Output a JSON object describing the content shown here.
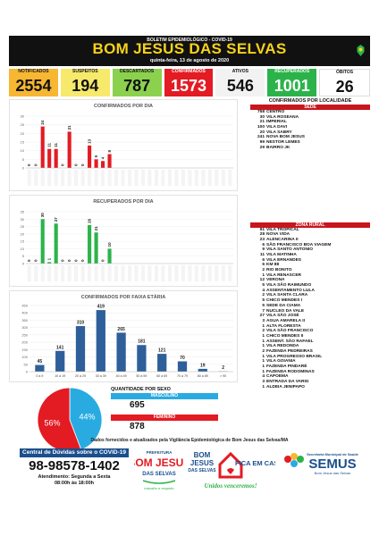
{
  "header": {
    "pretitle": "BOLETIM EPIDEMIOLÓGICO - COVID-19",
    "title": "BOM JESUS DAS SELVAS",
    "date": "quinta-feira, 13 de agosto de 2020"
  },
  "stats": [
    {
      "label": "NOTIFICADOS",
      "value": "2554",
      "color": "#f7b733",
      "text_color": "#111111"
    },
    {
      "label": "SUSPEITOS",
      "value": "194",
      "color": "#f7e96b",
      "text_color": "#111111"
    },
    {
      "label": "DESCARTADOS",
      "value": "787",
      "color": "#8bd14e",
      "text_color": "#111111"
    },
    {
      "label": "CONFIRMADOS",
      "value": "1573",
      "color": "#e31b23",
      "text_color": "#ffffff"
    },
    {
      "label": "ATIVOS",
      "value": "546",
      "color": "#f2f2f2",
      "text_color": "#111111"
    },
    {
      "label": "RECUPERADOS",
      "value": "1001",
      "color": "#2bb34a",
      "text_color": "#ffffff"
    },
    {
      "label": "ÓBITOS",
      "value": "26",
      "color": "#ffffff",
      "text_color": "#111111"
    }
  ],
  "charts": {
    "confirmados_dia": {
      "title": "CONFIRMADOS POR DIA",
      "type": "bar",
      "color": "#e31b23",
      "y_ticks": [
        "0",
        "5",
        "10",
        "15",
        "20",
        "25",
        "30"
      ],
      "ylim": [
        0,
        30
      ],
      "values": [
        0,
        0,
        24,
        11,
        11,
        0,
        21,
        0,
        0,
        13,
        5,
        4,
        8,
        0,
        0,
        0,
        0,
        0,
        0,
        0,
        0,
        0,
        0,
        0,
        0,
        0,
        0,
        0,
        0,
        0,
        0
      ],
      "labels": [
        "0",
        "0",
        "24",
        "11",
        "11",
        "0",
        "21",
        "0",
        "0",
        "13",
        "5",
        "4",
        "8"
      ]
    },
    "recuperados_dia": {
      "title": "RECUPERADOS POR DIA",
      "type": "bar",
      "color": "#2bb34a",
      "y_ticks": [
        "0",
        "5",
        "10",
        "15",
        "20",
        "25",
        "30",
        "35"
      ],
      "ylim": [
        0,
        35
      ],
      "values": [
        0,
        0,
        30,
        1,
        27,
        0,
        0,
        0,
        0,
        26,
        21,
        0,
        10,
        0,
        0,
        0,
        0,
        0,
        0,
        0,
        0,
        0,
        0,
        0,
        0,
        0,
        0,
        0,
        0,
        0,
        0
      ],
      "labels": [
        "0",
        "0",
        "30",
        "1",
        "27",
        "0",
        "0",
        "0",
        "0",
        "26",
        "21",
        "0",
        "10"
      ]
    },
    "faixa_etaria": {
      "title": "CONFIRMADOS POR FAIXA ETÁRIA",
      "type": "bar",
      "color": "#2e5f9a",
      "y_ticks": [
        "0",
        "50",
        "100",
        "150",
        "200",
        "250",
        "300",
        "350",
        "400",
        "450"
      ],
      "ylim": [
        0,
        450
      ],
      "categories": [
        "0 a 9",
        "10 a 19",
        "20 a 29",
        "30 a 39",
        "40 a 49",
        "50 a 59",
        "60 a 69",
        "70 a 79",
        "80 a 89",
        "> 90"
      ],
      "values": [
        45,
        141,
        310,
        419,
        265,
        181,
        121,
        70,
        19,
        2
      ]
    }
  },
  "localidade": {
    "title": "CONFIRMADOS POR LOCALIDADE",
    "sede_label": "SEDE",
    "sede": [
      {
        "n": "758",
        "name": "CENTRO"
      },
      {
        "n": "30",
        "name": "VILA ROSEANA"
      },
      {
        "n": "21",
        "name": "IMPERIAL"
      },
      {
        "n": "100",
        "name": "VILA DAVI"
      },
      {
        "n": "20",
        "name": "VILA SABRY"
      },
      {
        "n": "241",
        "name": "NOVA BOM JESUS"
      },
      {
        "n": "99",
        "name": "NESTOR LEMES"
      },
      {
        "n": "29",
        "name": "BAIRRO JK"
      }
    ],
    "rural_label": "ZONA RURAL",
    "rural": [
      {
        "n": "91",
        "name": "VILA TROPICAL"
      },
      {
        "n": "28",
        "name": "NOVA VIDA"
      },
      {
        "n": "23",
        "name": "ALENCARINA II"
      },
      {
        "n": "6",
        "name": "SÃO FRANCISCO BOA VIAGEM"
      },
      {
        "n": "9",
        "name": "VILA SANTO ANTONIO"
      },
      {
        "n": "11",
        "name": "VILA MATINHA"
      },
      {
        "n": "6",
        "name": "VILA ERNANDES"
      },
      {
        "n": "6",
        "name": "KM 88"
      },
      {
        "n": "2",
        "name": "RIO BONITO"
      },
      {
        "n": "1",
        "name": "VILA RENASCER"
      },
      {
        "n": "12",
        "name": "VERONA"
      },
      {
        "n": "5",
        "name": "VILA SÃO RAIMUNDO"
      },
      {
        "n": "4",
        "name": "ASSENTAMENTO LULA"
      },
      {
        "n": "2",
        "name": "VILA SANTA CLARA"
      },
      {
        "n": "5",
        "name": "CHICO MENDES I"
      },
      {
        "n": "5",
        "name": "SEDE DA CIAMA"
      },
      {
        "n": "7",
        "name": "NUCLEO DA VALE"
      },
      {
        "n": "27",
        "name": "VILA SÃO JOSÉ"
      },
      {
        "n": "3",
        "name": "AGUA AMARELA II"
      },
      {
        "n": "1",
        "name": "ALTA FLORESTA"
      },
      {
        "n": "2",
        "name": "VILA SÃO FRANCISCO"
      },
      {
        "n": "1",
        "name": "CHICO MENDES II"
      },
      {
        "n": "1",
        "name": "ASSENT. SÃO RAFAEL"
      },
      {
        "n": "1",
        "name": "VILA REDONDA"
      },
      {
        "n": "2",
        "name": "FAZENDA PEDREIRAS"
      },
      {
        "n": "1",
        "name": "VILA PROGRESSO BRASIL"
      },
      {
        "n": "1",
        "name": "VILA GOIANIA"
      },
      {
        "n": "1",
        "name": "FAZENDA PINDARÉ"
      },
      {
        "n": "1",
        "name": "FAZENDA RODOMINAS"
      },
      {
        "n": "4",
        "name": "CAPOEMA"
      },
      {
        "n": "3",
        "name": "ENTRADA DA VARIG"
      },
      {
        "n": "1",
        "name": "ALDEIA JENIPAPO"
      }
    ]
  },
  "sexo": {
    "title": "QUANTIDADE POR SEXO",
    "masculino_label": "MASCULINO",
    "masculino_value": "695",
    "masculino_color": "#29abe2",
    "feminino_label": "FEMININO",
    "feminino_value": "878",
    "feminino_color": "#e31b23",
    "pie_labels": [
      "56%",
      "44%"
    ],
    "pie_values": [
      878,
      695
    ]
  },
  "footer": {
    "note": "Dados fornecidos e atualizados pela Vigilância Epidemiológica de Bom Jesus das Selvas/MA",
    "central": "Central de Dúvidas sobre o COVID-19",
    "phone": "98-98578-1402",
    "atend1": "Atendimento: Segunda a Sexta",
    "atend2": "08:00h às 18:00h",
    "pref_top": "PREFEITURA",
    "pref_main": "BOM JESUS",
    "pref_sub": "DAS SELVAS",
    "pref_slogan": "trabalho e respeito",
    "fica1": "BOM",
    "fica2": "JESUS",
    "fica3": "DAS SELVAS",
    "fica_em": "FICA EM CASA",
    "unidos": "Unidos venceremos!",
    "semus_top": "Secretaria Municipal de Saúde",
    "semus": "SEMUS",
    "semus_sub": "Bom Jesus das Selvas"
  }
}
